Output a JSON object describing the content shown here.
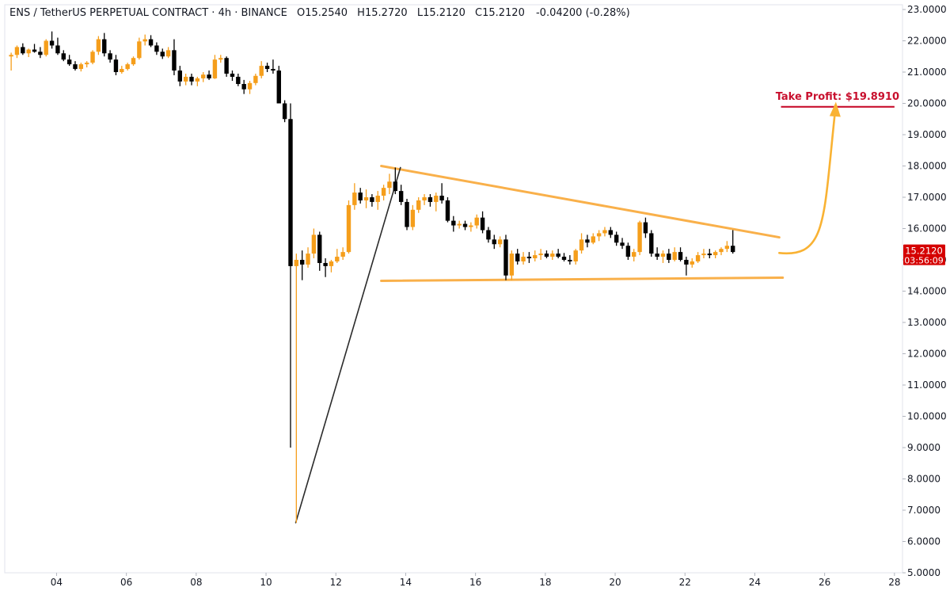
{
  "header": {
    "symbol": "ENS / TetherUS PERPETUAL CONTRACT · 4h · BINANCE",
    "o_label": "O",
    "o_value": "15.2540",
    "h_label": "H",
    "h_value": "15.2720",
    "l_label": "L",
    "l_value": "15.2120",
    "c_label": "C",
    "c_value": "15.2120",
    "change": "-0.04200 (-0.28%)"
  },
  "colors": {
    "up": "#f59e1b",
    "down": "#000000",
    "trendline": "#f9b04a",
    "impulse": "#2b2b2b",
    "take_profit": "#c8102e",
    "price_badge": "#d50000",
    "axis_text": "#131722",
    "arrow": "#f9b233"
  },
  "price_badge": {
    "price": "15.2120",
    "countdown": "03:56:09"
  },
  "annotation": {
    "take_profit_label": "Take Profit: $19.8910",
    "take_profit_value": 19.891
  },
  "chart_data": {
    "type": "candlestick",
    "timeframe": "4h",
    "x_axis": {
      "ticks": [
        "04",
        "06",
        "08",
        "10",
        "12",
        "14",
        "16",
        "18",
        "20",
        "22",
        "24",
        "26",
        "28"
      ],
      "tick_days": [
        4,
        6,
        8,
        10,
        12,
        14,
        16,
        18,
        20,
        22,
        24,
        26,
        28
      ],
      "range_days": [
        2.55,
        28.0
      ]
    },
    "y_axis": {
      "ticks": [
        "5.0000",
        "6.0000",
        "7.0000",
        "8.0000",
        "9.0000",
        "10.0000",
        "11.0000",
        "12.0000",
        "13.0000",
        "14.0000",
        "15.0000",
        "16.0000",
        "17.0000",
        "18.0000",
        "19.0000",
        "20.0000",
        "21.0000",
        "22.0000",
        "23.0000"
      ],
      "range": [
        5.0,
        23.0
      ],
      "position": "right"
    },
    "grid": false,
    "series": [
      {
        "name": "",
        "start_day": 2.7,
        "step_days": 0.1667,
        "ohlc": [
          [
            21.5,
            21.62,
            21.05,
            21.55
          ],
          [
            21.55,
            21.85,
            21.45,
            21.8
          ],
          [
            21.8,
            21.92,
            21.55,
            21.6
          ],
          [
            21.6,
            21.75,
            21.48,
            21.72
          ],
          [
            21.72,
            21.9,
            21.62,
            21.65
          ],
          [
            21.65,
            21.8,
            21.45,
            21.55
          ],
          [
            21.55,
            22.05,
            21.5,
            22.0
          ],
          [
            22.0,
            22.3,
            21.75,
            21.85
          ],
          [
            21.85,
            22.1,
            21.55,
            21.6
          ],
          [
            21.6,
            21.7,
            21.35,
            21.4
          ],
          [
            21.4,
            21.55,
            21.2,
            21.25
          ],
          [
            21.25,
            21.35,
            21.05,
            21.1
          ],
          [
            21.1,
            21.3,
            21.02,
            21.25
          ],
          [
            21.25,
            21.35,
            21.15,
            21.3
          ],
          [
            21.3,
            21.7,
            21.25,
            21.65
          ],
          [
            21.65,
            22.15,
            21.55,
            22.05
          ],
          [
            22.05,
            22.25,
            21.5,
            21.6
          ],
          [
            21.6,
            21.7,
            21.3,
            21.4
          ],
          [
            21.4,
            21.55,
            20.9,
            21.0
          ],
          [
            21.0,
            21.2,
            20.95,
            21.1
          ],
          [
            21.1,
            21.3,
            21.05,
            21.25
          ],
          [
            21.25,
            21.5,
            21.2,
            21.45
          ],
          [
            21.45,
            22.1,
            21.4,
            21.98
          ],
          [
            21.98,
            22.2,
            21.85,
            22.05
          ],
          [
            22.05,
            22.18,
            21.8,
            21.85
          ],
          [
            21.85,
            21.95,
            21.55,
            21.65
          ],
          [
            21.65,
            21.75,
            21.42,
            21.5
          ],
          [
            21.5,
            21.8,
            21.45,
            21.7
          ],
          [
            21.7,
            22.05,
            20.9,
            21.05
          ],
          [
            21.05,
            21.2,
            20.55,
            20.7
          ],
          [
            20.7,
            20.95,
            20.58,
            20.85
          ],
          [
            20.85,
            20.95,
            20.58,
            20.7
          ],
          [
            20.7,
            20.85,
            20.55,
            20.8
          ],
          [
            20.8,
            21.0,
            20.68,
            20.92
          ],
          [
            20.92,
            21.05,
            20.75,
            20.8
          ],
          [
            20.8,
            21.55,
            20.78,
            21.4
          ],
          [
            21.4,
            21.55,
            21.3,
            21.45
          ],
          [
            21.45,
            21.5,
            20.85,
            20.95
          ],
          [
            20.95,
            21.05,
            20.72,
            20.85
          ],
          [
            20.85,
            20.95,
            20.55,
            20.62
          ],
          [
            20.62,
            20.75,
            20.3,
            20.45
          ],
          [
            20.45,
            20.72,
            20.3,
            20.65
          ],
          [
            20.65,
            20.95,
            20.58,
            20.88
          ],
          [
            20.88,
            21.35,
            20.8,
            21.2
          ],
          [
            21.2,
            21.3,
            21.0,
            21.1
          ],
          [
            21.1,
            21.4,
            20.95,
            21.05
          ],
          [
            21.05,
            21.2,
            20.0,
            20.0
          ],
          [
            20.0,
            20.1,
            19.4,
            19.5
          ],
          [
            19.5,
            20.0,
            9.0,
            14.8
          ],
          [
            14.8,
            15.2,
            6.6,
            15.0
          ],
          [
            15.0,
            15.3,
            14.35,
            14.85
          ],
          [
            14.85,
            15.4,
            14.75,
            15.2
          ],
          [
            15.2,
            16.0,
            15.05,
            15.8
          ],
          [
            15.8,
            15.9,
            14.65,
            14.9
          ],
          [
            14.9,
            15.05,
            14.45,
            14.8
          ],
          [
            14.8,
            15.0,
            14.6,
            14.95
          ],
          [
            14.95,
            15.35,
            14.9,
            15.1
          ],
          [
            15.1,
            15.4,
            15.0,
            15.25
          ],
          [
            15.25,
            16.9,
            15.2,
            16.75
          ],
          [
            16.75,
            17.45,
            16.6,
            17.15
          ],
          [
            17.15,
            17.3,
            16.8,
            16.9
          ],
          [
            16.9,
            17.25,
            16.65,
            17.0
          ],
          [
            17.0,
            17.1,
            16.7,
            16.85
          ],
          [
            16.85,
            17.2,
            16.6,
            17.05
          ],
          [
            17.05,
            17.4,
            16.9,
            17.3
          ],
          [
            17.3,
            17.75,
            17.1,
            17.5
          ],
          [
            17.5,
            17.95,
            17.1,
            17.2
          ],
          [
            17.2,
            17.4,
            16.75,
            16.85
          ],
          [
            16.85,
            16.95,
            15.95,
            16.05
          ],
          [
            16.05,
            16.75,
            15.95,
            16.6
          ],
          [
            16.6,
            17.0,
            16.5,
            16.9
          ],
          [
            16.9,
            17.1,
            16.75,
            17.0
          ],
          [
            17.0,
            17.1,
            16.7,
            16.85
          ],
          [
            16.85,
            17.15,
            16.55,
            17.05
          ],
          [
            17.05,
            17.45,
            16.8,
            16.9
          ],
          [
            16.9,
            17.0,
            16.2,
            16.25
          ],
          [
            16.25,
            16.4,
            15.9,
            16.1
          ],
          [
            16.1,
            16.25,
            16.0,
            16.15
          ],
          [
            16.15,
            16.25,
            15.95,
            16.05
          ],
          [
            16.05,
            16.2,
            15.9,
            16.1
          ],
          [
            16.1,
            16.45,
            16.0,
            16.35
          ],
          [
            16.35,
            16.55,
            15.85,
            15.95
          ],
          [
            15.95,
            16.05,
            15.55,
            15.65
          ],
          [
            15.65,
            15.8,
            15.35,
            15.5
          ],
          [
            15.5,
            15.75,
            15.4,
            15.65
          ],
          [
            15.65,
            15.8,
            14.35,
            14.5
          ],
          [
            14.5,
            15.3,
            14.35,
            15.2
          ],
          [
            15.2,
            15.35,
            14.85,
            14.95
          ],
          [
            14.95,
            15.25,
            14.85,
            15.1
          ],
          [
            15.1,
            15.25,
            14.9,
            15.05
          ],
          [
            15.05,
            15.3,
            14.95,
            15.15
          ],
          [
            15.15,
            15.35,
            15.0,
            15.2
          ],
          [
            15.2,
            15.3,
            15.05,
            15.1
          ],
          [
            15.1,
            15.3,
            15.0,
            15.2
          ],
          [
            15.2,
            15.35,
            15.05,
            15.1
          ],
          [
            15.1,
            15.22,
            14.95,
            15.0
          ],
          [
            15.0,
            15.15,
            14.85,
            14.95
          ],
          [
            14.95,
            15.35,
            14.85,
            15.3
          ],
          [
            15.3,
            15.85,
            15.2,
            15.65
          ],
          [
            15.65,
            15.8,
            15.4,
            15.55
          ],
          [
            15.55,
            15.85,
            15.5,
            15.75
          ],
          [
            15.75,
            15.95,
            15.6,
            15.85
          ],
          [
            15.85,
            16.05,
            15.75,
            15.95
          ],
          [
            15.95,
            16.05,
            15.7,
            15.8
          ],
          [
            15.8,
            15.9,
            15.45,
            15.55
          ],
          [
            15.55,
            15.7,
            15.35,
            15.45
          ],
          [
            15.45,
            15.55,
            15.0,
            15.1
          ],
          [
            15.1,
            15.35,
            14.95,
            15.25
          ],
          [
            15.25,
            16.25,
            15.15,
            16.2
          ],
          [
            16.2,
            16.35,
            15.7,
            15.85
          ],
          [
            15.85,
            15.95,
            15.1,
            15.2
          ],
          [
            15.2,
            15.4,
            15.0,
            15.1
          ],
          [
            15.1,
            15.3,
            14.9,
            15.2
          ],
          [
            15.2,
            15.35,
            14.9,
            15.0
          ],
          [
            15.0,
            15.4,
            14.95,
            15.25
          ],
          [
            15.25,
            15.4,
            14.95,
            15.0
          ],
          [
            15.0,
            15.1,
            14.5,
            14.85
          ],
          [
            14.85,
            15.05,
            14.75,
            14.95
          ],
          [
            14.95,
            15.25,
            14.9,
            15.15
          ],
          [
            15.15,
            15.35,
            15.05,
            15.2
          ],
          [
            15.2,
            15.35,
            15.05,
            15.15
          ],
          [
            15.15,
            15.3,
            15.05,
            15.25
          ],
          [
            15.25,
            15.4,
            15.15,
            15.35
          ],
          [
            15.35,
            15.6,
            15.25,
            15.45
          ],
          [
            15.45,
            15.95,
            15.2,
            15.25
          ]
        ]
      }
    ],
    "drawings": {
      "upper_trendline": {
        "from": [
          13.3,
          18.0
        ],
        "to": [
          24.7,
          15.72
        ]
      },
      "lower_trendline": {
        "from": [
          13.3,
          14.33
        ],
        "to": [
          24.8,
          14.43
        ]
      },
      "impulse_line": {
        "from": [
          10.85,
          6.6
        ],
        "to": [
          13.85,
          17.95
        ]
      },
      "take_profit_line": {
        "from": [
          24.75,
          19.891
        ],
        "to": [
          28.0,
          19.891
        ]
      },
      "projection_arrow": {
        "from": [
          24.7,
          15.22
        ],
        "to": [
          26.3,
          19.9
        ]
      }
    }
  }
}
